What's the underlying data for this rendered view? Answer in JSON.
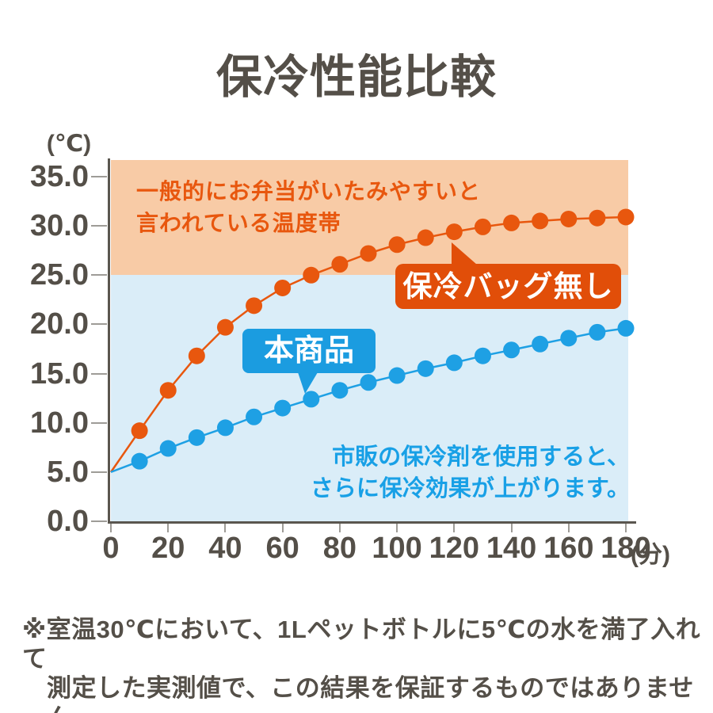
{
  "title": "保冷性能比較",
  "chart": {
    "y_unit": "(℃)",
    "x_unit": "(分)",
    "series_labels": {
      "no_bag": "保冷バッグ無し",
      "product": "本商品"
    },
    "zone_note": {
      "line1": "一般的にお弁当がいたみやすいと",
      "line2": "言われている温度帯"
    },
    "ice_pack_note": {
      "line1": "市販の保冷剤を使用すると、",
      "line2": "さらに保冷効果が上がります。"
    }
  },
  "chart_data": {
    "type": "line",
    "title": "保冷性能比較",
    "x": [
      0,
      10,
      20,
      30,
      40,
      50,
      60,
      70,
      80,
      90,
      100,
      110,
      120,
      130,
      140,
      150,
      160,
      170,
      180
    ],
    "x_ticks": [
      0,
      20,
      40,
      60,
      80,
      100,
      120,
      140,
      160,
      180
    ],
    "x_tick_labels": [
      "0",
      "20",
      "40",
      "60",
      "80",
      "100",
      "120",
      "140",
      "160",
      "180"
    ],
    "xlabel": "(分)",
    "y_ticks": [
      35,
      30,
      25,
      20,
      15,
      10,
      5,
      0
    ],
    "y_tick_labels": [
      "35.0",
      "30.0",
      "25.0",
      "20.0",
      "15.0",
      "10.0",
      "5.0",
      "0.0"
    ],
    "ylabel": "(℃)",
    "ylim": [
      0,
      36.8
    ],
    "xlim": [
      0,
      180
    ],
    "grid": false,
    "series": [
      {
        "key": "no_bag",
        "name": "保冷バッグ無し",
        "color": "#E8570E",
        "values": [
          5.0,
          9.2,
          13.3,
          16.8,
          19.7,
          21.9,
          23.7,
          25.0,
          26.1,
          27.2,
          28.1,
          28.8,
          29.4,
          29.9,
          30.3,
          30.5,
          30.7,
          30.8,
          30.9
        ]
      },
      {
        "key": "product",
        "name": "本商品",
        "color": "#1EA0E4",
        "values": [
          5.0,
          6.1,
          7.4,
          8.5,
          9.5,
          10.6,
          11.5,
          12.4,
          13.3,
          14.1,
          14.8,
          15.5,
          16.1,
          16.8,
          17.4,
          18.0,
          18.6,
          19.2,
          19.6
        ]
      }
    ],
    "zones": [
      {
        "label": "一般的にお弁当がいたみやすいと言われている温度帯",
        "temp_range": [
          25,
          36.8
        ],
        "color": "#F8CBA6"
      },
      {
        "label": "市販の保冷剤を使用すると、さらに保冷効果が上がります。",
        "temp_range": [
          0,
          25
        ],
        "color": "#DAEDF8"
      }
    ],
    "annotations": [
      {
        "text": "保冷バッグ無し",
        "target_series": "no_bag",
        "bg": "#E14E09"
      },
      {
        "text": "本商品",
        "target_series": "product",
        "bg": "#1B9CE0"
      }
    ]
  },
  "footnote": {
    "line1": "※室温30℃において、1Lペットボトルに5℃の水を満了入れて",
    "line2": "測定した実測値で、この結果を保証するものではありません。"
  },
  "colors": {
    "background": "#FFFFFF",
    "text_dark": "#544F48",
    "warm_band": "#F8CBA6",
    "cool_band": "#DAEDF8",
    "orange_series": "#E8570E",
    "orange_callout_bg": "#E14E09",
    "blue_series": "#1EA0E4",
    "blue_callout_bg": "#1B9CE0",
    "blue_note_text": "#18A0E6",
    "axis": "#5A564F",
    "tick": "#9E9C97"
  }
}
